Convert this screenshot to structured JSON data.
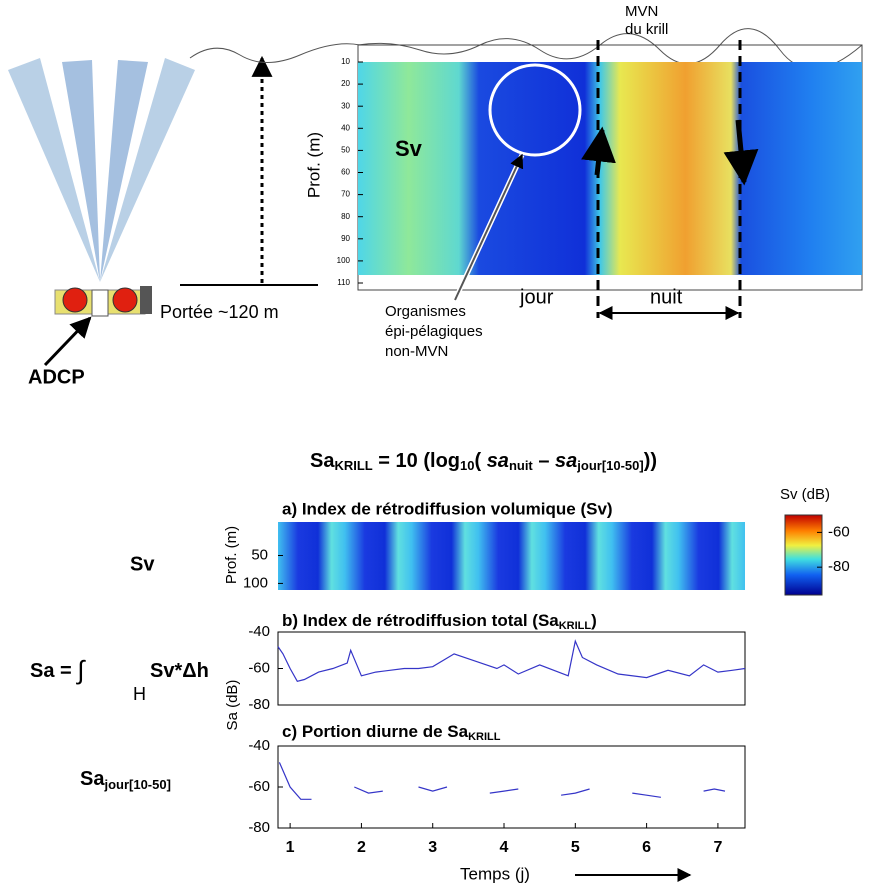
{
  "diagram": {
    "adcp_label": "ADCP",
    "range_label": "Portée ~120 m",
    "mvn_label": [
      "MVN",
      "du krill"
    ],
    "sv_label": "Sv",
    "day_label": "jour",
    "night_label": "nuit",
    "organisms_label": [
      "Organismes",
      "épi-pélagiques",
      "non-MVN"
    ],
    "formula": [
      "Sa",
      "KRILL",
      " = 10 (log",
      "10",
      "( ",
      "sa",
      "nuit",
      " – ",
      "sa",
      "jour[10-50]",
      "))"
    ],
    "left_sv": "Sv",
    "left_sa": [
      "Sa = ",
      "∫",
      "H",
      "Sv*Δh"
    ],
    "left_sa_jour": [
      "Sa",
      "jour[10-50]"
    ]
  },
  "chart_data": [
    {
      "type": "heatmap",
      "ylabel": "Prof. (m)",
      "ylim": [
        10,
        110
      ],
      "yticks": [
        10,
        20,
        30,
        40,
        50,
        60,
        70,
        80,
        90,
        100,
        110
      ]
    },
    {
      "type": "heatmap",
      "title": "a) Index de rétrodiffusion volumique (Sv)",
      "ylabel": "Prof. (m)",
      "ylim": [
        -10,
        110
      ],
      "yticks": [
        50,
        100
      ]
    },
    {
      "type": "colorbar",
      "title": "Sv (dB)",
      "ylim": [
        -96,
        -50
      ],
      "yticks": [
        -60,
        -80
      ]
    },
    {
      "type": "line",
      "title": [
        "b) Index de rétrodiffusion total (Sa",
        "KRILL",
        ")"
      ],
      "color": "#3535c8",
      "xlim": [
        0.83,
        7.38
      ],
      "ylim": [
        -80,
        -40
      ],
      "yticks": [
        -40,
        -60,
        -80
      ],
      "x": [
        0.83,
        0.9,
        1.0,
        1.1,
        1.2,
        1.4,
        1.6,
        1.8,
        1.85,
        2.0,
        2.2,
        2.4,
        2.6,
        2.8,
        3.0,
        3.3,
        3.6,
        3.9,
        4.0,
        4.2,
        4.5,
        4.9,
        5.0,
        5.1,
        5.3,
        5.6,
        6.0,
        6.3,
        6.6,
        6.8,
        7.0,
        7.2,
        7.38
      ],
      "series": [
        {
          "values": [
            -48,
            -52,
            -60,
            -67,
            -66,
            -62,
            -60,
            -57,
            -50,
            -64,
            -62,
            -61,
            -60,
            -60,
            -59,
            -52,
            -56,
            -60,
            -58,
            -63,
            -58,
            -64,
            -45,
            -54,
            -58,
            -63,
            -65,
            -61,
            -64,
            -58,
            -62,
            -61,
            -60
          ]
        }
      ]
    },
    {
      "type": "line",
      "title": [
        "c) Portion diurne de Sa",
        "KRILL"
      ],
      "ylabel": "Sa (dB)",
      "xlabel": "Temps (j)",
      "color": "#3535c8",
      "xlim": [
        0.83,
        7.38
      ],
      "ylim": [
        -80,
        -40
      ],
      "yticks": [
        -40,
        -60,
        -80
      ],
      "xticks": [
        1,
        2,
        3,
        4,
        5,
        6,
        7
      ],
      "x": [
        0.85,
        1.0,
        1.15,
        1.3,
        1.6,
        1.9,
        2.1,
        2.3,
        2.6,
        2.8,
        3.0,
        3.2,
        3.5,
        3.8,
        4.0,
        4.2,
        4.5,
        4.8,
        5.0,
        5.2,
        5.5,
        5.8,
        6.0,
        6.2,
        6.5,
        6.8,
        6.95,
        7.1
      ],
      "series": [
        {
          "values": [
            -48,
            -60,
            -66,
            -66,
            null,
            -60,
            -63,
            -62,
            null,
            -60,
            -62,
            -60,
            null,
            -63,
            -62,
            -61,
            null,
            -64,
            -63,
            -61,
            null,
            -63,
            -64,
            -65,
            null,
            -62,
            -61,
            -62
          ]
        }
      ]
    }
  ]
}
